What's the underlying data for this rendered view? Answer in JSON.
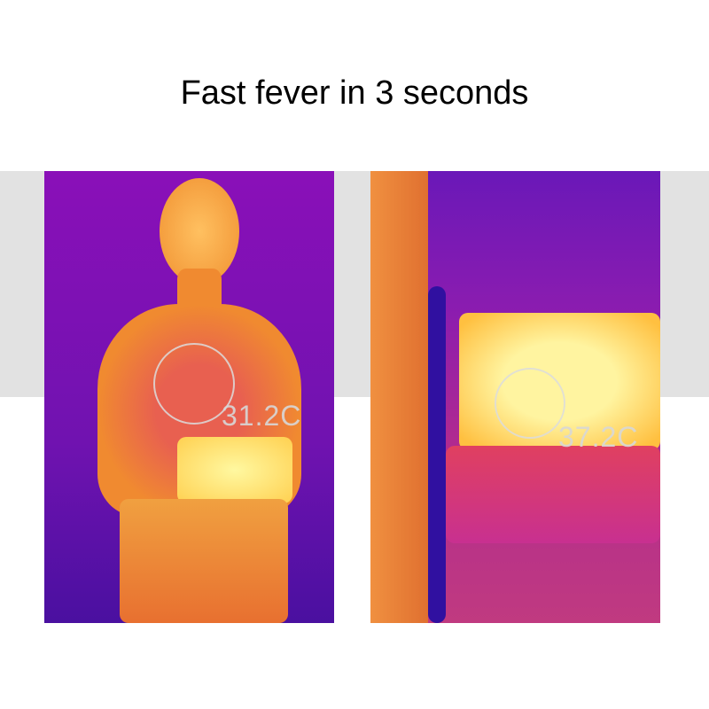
{
  "title": "Fast fever in 3 seconds",
  "images": [
    {
      "label": "thermal-image-front",
      "temperature": "31.2C"
    },
    {
      "label": "thermal-image-side",
      "temperature": "37.2C"
    }
  ],
  "colors": {
    "cold": "#6a10b0",
    "warm": "#f08020",
    "hot": "#fff080"
  }
}
